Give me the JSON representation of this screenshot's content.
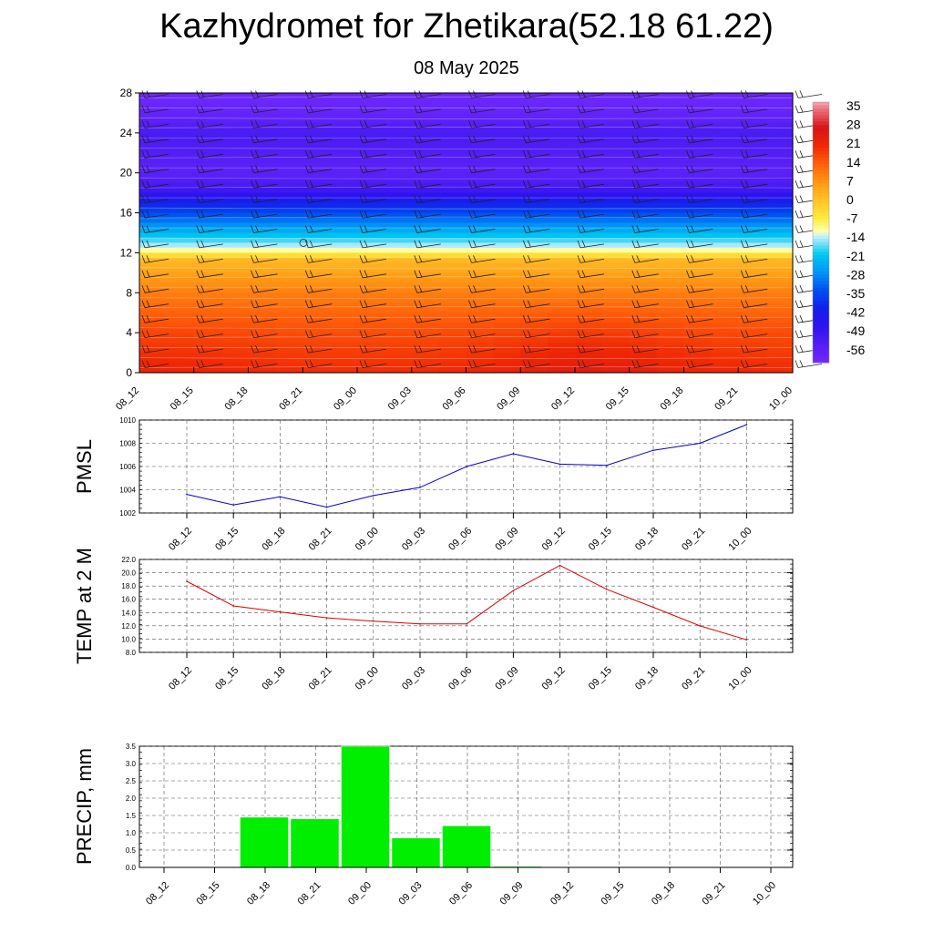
{
  "title": "Kazhydromet for Zhetikara(52.18 61.22)",
  "subtitle": "08 May 2025",
  "time_labels": [
    "08_12",
    "08_15",
    "08_18",
    "08_21",
    "09_00",
    "09_03",
    "09_06",
    "09_09",
    "09_12",
    "09_15",
    "09_18",
    "09_21",
    "10_00"
  ],
  "colors": {
    "pmsl_line": "#0000cc",
    "temp_line": "#dd0000",
    "precip_bar": "#00ee00",
    "grid": "#555555"
  },
  "chart_data": [
    {
      "type": "heatmap",
      "y_ticks": [
        0,
        4,
        8,
        12,
        16,
        20,
        24,
        28
      ],
      "ylim": [
        0,
        28
      ],
      "colorbar": {
        "labels": [
          "35",
          "28",
          "21",
          "14",
          "7",
          "0",
          "-7",
          "-14",
          "-21",
          "-28",
          "-35",
          "-42",
          "-49",
          "-56"
        ],
        "min": -63,
        "max": 38
      },
      "column_modulation": [
        1,
        0.9,
        0.6,
        0.3,
        0.3,
        0.4,
        0.6,
        1.2,
        2.0,
        1.6,
        1.0,
        0.6,
        0.4
      ],
      "wind_barbs": true
    },
    {
      "type": "line",
      "ylabel": "PMSL",
      "ylim": [
        1002,
        1010
      ],
      "y_ticks": [
        "1002",
        "1004",
        "1006",
        "1008",
        "1010"
      ],
      "values": [
        1003.6,
        1002.7,
        1003.4,
        1002.5,
        1003.5,
        1004.2,
        1006.0,
        1007.1,
        1006.2,
        1006.1,
        1007.4,
        1008.0,
        1009.6
      ]
    },
    {
      "type": "line",
      "ylabel": "TEMP at 2 M",
      "ylim": [
        8,
        22
      ],
      "y_ticks": [
        "8.0",
        "10.0",
        "12.0",
        "14.0",
        "16.0",
        "18.0",
        "20.0",
        "22.0"
      ],
      "values": [
        18.7,
        15.0,
        14.1,
        13.2,
        12.7,
        12.3,
        12.3,
        17.3,
        21.1,
        17.5,
        14.8,
        12.0,
        9.9
      ]
    },
    {
      "type": "bar",
      "ylabel": "PRECIP, mm",
      "ylim": [
        0,
        3.5
      ],
      "y_ticks": [
        "0.0",
        "0.5",
        "1.0",
        "1.5",
        "2.0",
        "2.5",
        "3.0",
        "3.5"
      ],
      "values": [
        0,
        1.45,
        1.4,
        3.5,
        0.85,
        1.2,
        0.03,
        0,
        0,
        0,
        0,
        0
      ]
    }
  ]
}
